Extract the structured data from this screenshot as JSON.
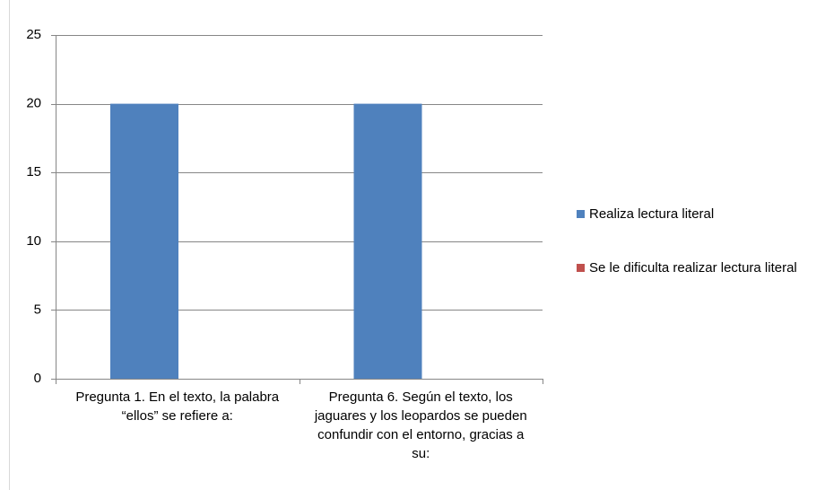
{
  "chart_data": {
    "type": "bar",
    "categories": [
      "Pregunta 1.  En el texto, la palabra “ellos” se refiere a:",
      "Pregunta 6. Según el texto, los jaguares y los leopardos se pueden confundir con el entorno, gracias a su:"
    ],
    "series": [
      {
        "name": "Realiza lectura literal",
        "color": "#4f81bd",
        "values": [
          20,
          20
        ]
      },
      {
        "name": "Se le dificulta realizar lectura literal",
        "color": "#c0504d",
        "values": [
          0,
          0
        ]
      }
    ],
    "ylim": [
      0,
      25
    ],
    "yticks": [
      0,
      5,
      10,
      15,
      20,
      25
    ],
    "grid": true,
    "legend": "right"
  }
}
